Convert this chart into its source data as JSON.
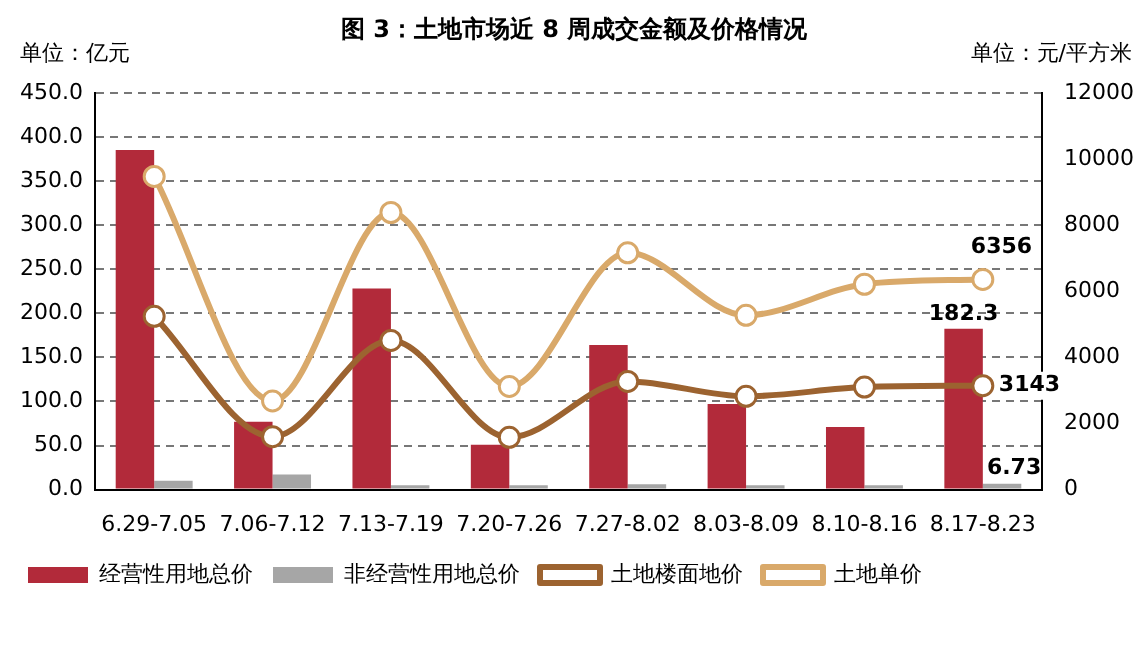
{
  "chart_data": {
    "type": "bar",
    "title": "图 3：土地市场近 8 周成交金额及价格情况",
    "ylabel": "单位：亿元",
    "y2label": "单位：元/平方米",
    "categories": [
      "6.29-7.05",
      "7.06-7.12",
      "7.13-7.19",
      "7.20-7.26",
      "7.27-8.02",
      "8.03-8.09",
      "8.10-8.16",
      "8.17-8.23"
    ],
    "series": [
      {
        "name": "经营性用地总价",
        "color": "#b22a3a",
        "values": [
          385,
          77,
          228,
          51,
          164,
          97,
          71,
          182.3
        ],
        "value_labels": [
          null,
          null,
          null,
          null,
          null,
          null,
          null,
          "182.3"
        ]
      },
      {
        "name": "非经营性用地总价",
        "color": "#a6a6a6",
        "values": [
          10,
          17,
          5,
          5,
          6,
          5,
          5,
          6.73
        ],
        "value_labels": [
          null,
          null,
          null,
          null,
          null,
          null,
          null,
          "6.73"
        ]
      },
      {
        "name": "土地楼面地价",
        "type": "line",
        "axis": "y2",
        "color": "#9c6330",
        "values": [
          5240,
          1600,
          4510,
          1580,
          3270,
          2820,
          3100,
          3143
        ],
        "value_labels": [
          null,
          null,
          null,
          null,
          null,
          null,
          null,
          "3143"
        ]
      },
      {
        "name": "土地单价",
        "type": "line",
        "axis": "y2",
        "color": "#d9a96a",
        "values": [
          9470,
          2680,
          8380,
          3120,
          7160,
          5270,
          6210,
          6356
        ],
        "value_labels": [
          null,
          null,
          null,
          null,
          null,
          null,
          null,
          "6356"
        ]
      }
    ],
    "ylim": [
      0,
      450
    ],
    "yticks": [
      {
        "value": 0,
        "label": "0.0"
      },
      {
        "value": 50,
        "label": "50.0"
      },
      {
        "value": 100,
        "label": "100.0"
      },
      {
        "value": 150,
        "label": "150.0"
      },
      {
        "value": 200,
        "label": "200.0"
      },
      {
        "value": 250,
        "label": "250.0"
      },
      {
        "value": 300,
        "label": "300.0"
      },
      {
        "value": 350,
        "label": "350.0"
      },
      {
        "value": 400,
        "label": "400.0"
      },
      {
        "value": 450,
        "label": "450.0"
      }
    ],
    "y2lim": [
      0,
      12000
    ],
    "y2ticks": [
      0,
      2000,
      4000,
      6000,
      8000,
      10000,
      12000
    ],
    "grid": "y",
    "legend": "bottom",
    "marker": "circle"
  }
}
